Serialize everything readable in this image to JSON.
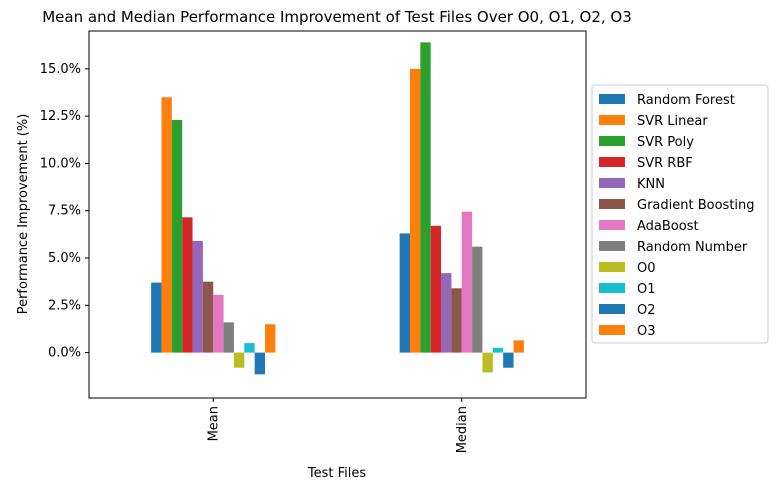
{
  "chart_data": {
    "type": "bar",
    "title": "Mean and Median Performance Improvement of Test Files Over O0, O1, O2, O3",
    "xlabel": "Test Files",
    "ylabel": "Performance Improvement (%)",
    "categories": [
      "Mean",
      "Median"
    ],
    "ylim": [
      -2.4,
      17.0
    ],
    "yticks": [
      0.0,
      2.5,
      5.0,
      7.5,
      10.0,
      12.5,
      15.0
    ],
    "ytick_labels": [
      "0.0%",
      "2.5%",
      "5.0%",
      "7.5%",
      "10.0%",
      "12.5%",
      "15.0%"
    ],
    "grid": false,
    "legend_position": "right-outside",
    "series": [
      {
        "name": "Random Forest",
        "color": "#1f77b4",
        "values": [
          3.7,
          6.3
        ]
      },
      {
        "name": "SVR Linear",
        "color": "#ff7f0e",
        "values": [
          13.5,
          15.0
        ]
      },
      {
        "name": "SVR Poly",
        "color": "#2ca02c",
        "values": [
          12.3,
          16.4
        ]
      },
      {
        "name": "SVR RBF",
        "color": "#d62728",
        "values": [
          7.15,
          6.7
        ]
      },
      {
        "name": "KNN",
        "color": "#9467bd",
        "values": [
          5.9,
          4.2
        ]
      },
      {
        "name": "Gradient Boosting",
        "color": "#8c564b",
        "values": [
          3.75,
          3.4
        ]
      },
      {
        "name": "AdaBoost",
        "color": "#e377c2",
        "values": [
          3.05,
          7.45
        ]
      },
      {
        "name": "Random Number",
        "color": "#7f7f7f",
        "values": [
          1.6,
          5.6
        ]
      },
      {
        "name": "O0",
        "color": "#bcbd22",
        "values": [
          -0.8,
          -1.05
        ]
      },
      {
        "name": "O1",
        "color": "#17becf",
        "values": [
          0.5,
          0.25
        ]
      },
      {
        "name": "O2",
        "color": "#1f77b4",
        "values": [
          -1.15,
          -0.8
        ]
      },
      {
        "name": "O3",
        "color": "#ff7f0e",
        "values": [
          1.5,
          0.65
        ]
      }
    ]
  }
}
